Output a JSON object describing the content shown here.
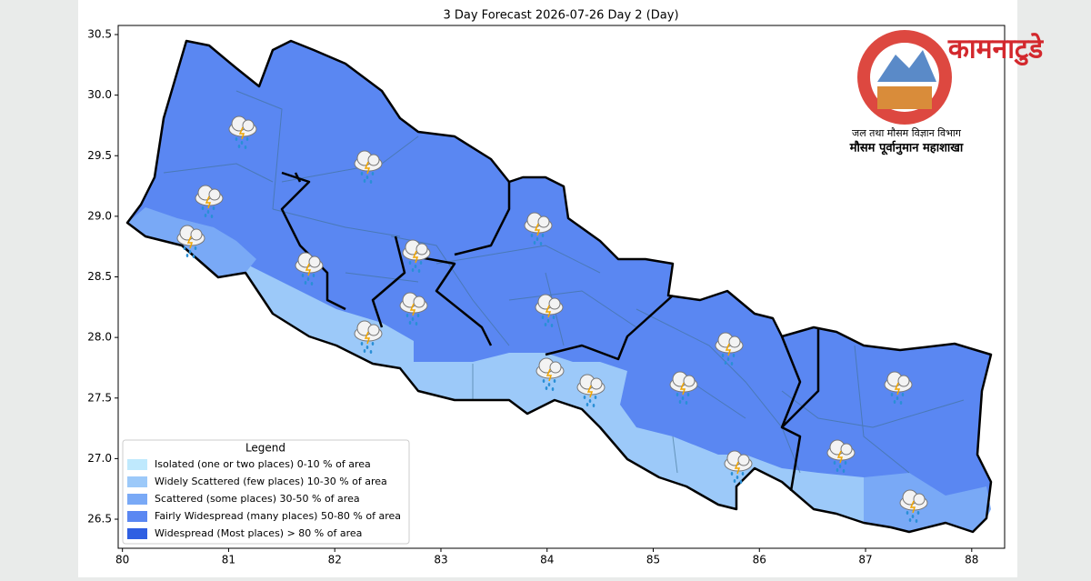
{
  "chart_data": {
    "type": "map",
    "title": "3 Day Forecast 2026-07-26 Day 2 (Day)",
    "xlim": [
      79.96,
      88.31
    ],
    "ylim": [
      26.26,
      30.575
    ],
    "xticks": [
      80,
      81,
      82,
      83,
      84,
      85,
      86,
      87,
      88
    ],
    "yticks": [
      26.5,
      {
        "value": 27,
        "label": "27.0"
      },
      27.5,
      {
        "value": 28,
        "label": "28.0"
      },
      28.5,
      {
        "value": 29,
        "label": "29.0"
      },
      29.5,
      {
        "value": 30,
        "label": "30.0"
      },
      30.5
    ],
    "legend": {
      "title": "Legend",
      "items": [
        {
          "name": "Isolated (one or two places)  0-10 % of area",
          "color": "#bfe9fd"
        },
        {
          "name": "Widely Scattered (few places)  10-30 % of area",
          "color": "#9cc9f9"
        },
        {
          "name": "Scattered (some places)  30-50 % of area",
          "color": "#79a9f6"
        },
        {
          "name": "Fairly Widespread (many places)  50-80 % of area",
          "color": "#5a87f2"
        },
        {
          "name": "Widespread (Most places) > 80 % of area",
          "color": "#2f5fe2"
        }
      ]
    }
  },
  "logo": {
    "department": "जल तथा मौसम विज्ञान विभाग",
    "division": "मौसम पूर्वानुमान महाशाखा",
    "watermark": "कामनाटुडे"
  }
}
